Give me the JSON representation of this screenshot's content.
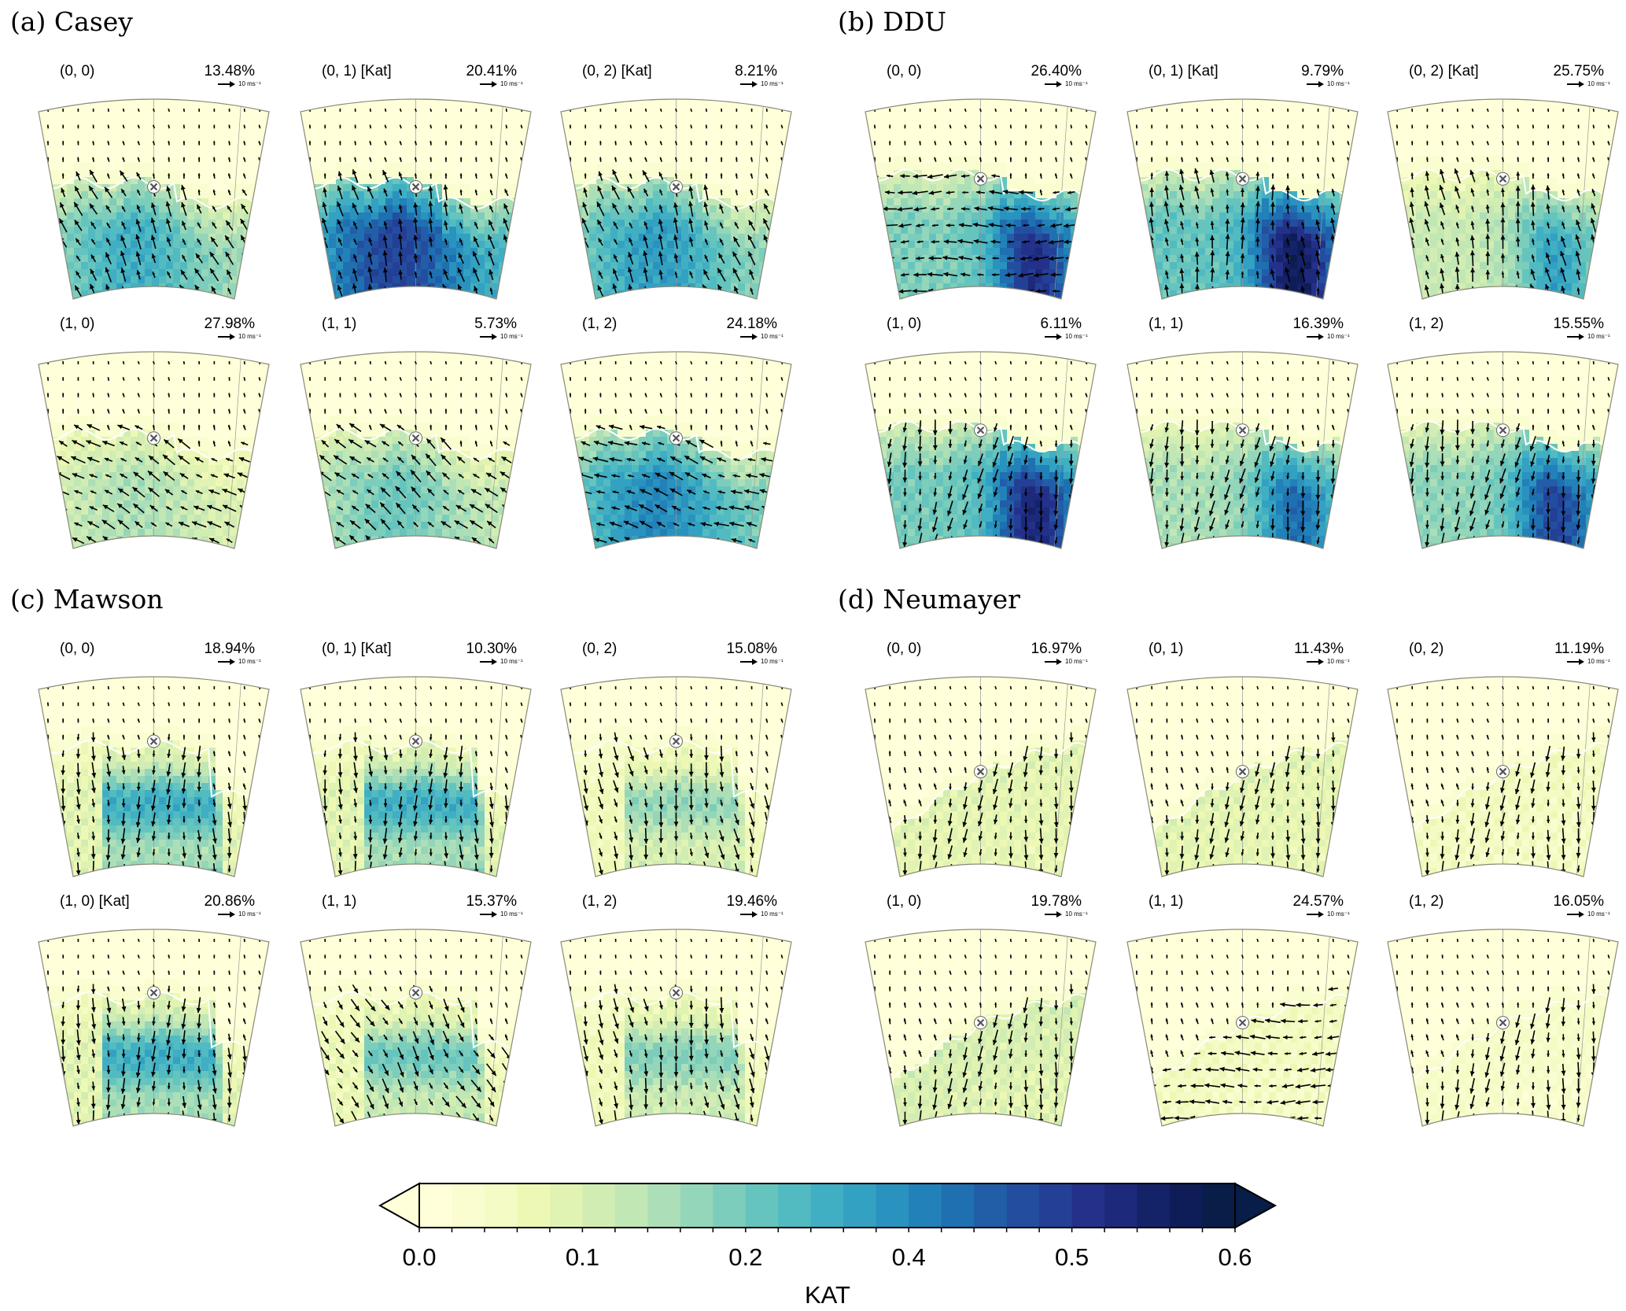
{
  "groups": [
    {
      "title": "(a) Casey",
      "panels": [
        {
          "label": "(0, 0)",
          "percent": "13.48%"
        },
        {
          "label": "(0, 1) [Kat]",
          "percent": "20.41%"
        },
        {
          "label": "(0, 2) [Kat]",
          "percent": "8.21%"
        },
        {
          "label": "(1, 0)",
          "percent": "27.98%"
        },
        {
          "label": "(1, 1)",
          "percent": "5.73%"
        },
        {
          "label": "(1, 2)",
          "percent": "24.18%"
        }
      ]
    },
    {
      "title": "(b) DDU",
      "panels": [
        {
          "label": "(0, 0)",
          "percent": "26.40%"
        },
        {
          "label": "(0, 1) [Kat]",
          "percent": "9.79%"
        },
        {
          "label": "(0, 2) [Kat]",
          "percent": "25.75%"
        },
        {
          "label": "(1, 0)",
          "percent": "6.11%"
        },
        {
          "label": "(1, 1)",
          "percent": "16.39%"
        },
        {
          "label": "(1, 2)",
          "percent": "15.55%"
        }
      ]
    },
    {
      "title": "(c) Mawson",
      "panels": [
        {
          "label": "(0, 0)",
          "percent": "18.94%"
        },
        {
          "label": "(0, 1) [Kat]",
          "percent": "10.30%"
        },
        {
          "label": "(0, 2)",
          "percent": "15.08%"
        },
        {
          "label": "(1, 0) [Kat]",
          "percent": "20.86%"
        },
        {
          "label": "(1, 1)",
          "percent": "15.37%"
        },
        {
          "label": "(1, 2)",
          "percent": "19.46%"
        }
      ]
    },
    {
      "title": "(d) Neumayer",
      "panels": [
        {
          "label": "(0, 0)",
          "percent": "16.97%"
        },
        {
          "label": "(0, 1)",
          "percent": "11.43%"
        },
        {
          "label": "(0, 2)",
          "percent": "11.19%"
        },
        {
          "label": "(1, 0)",
          "percent": "19.78%"
        },
        {
          "label": "(1, 1)",
          "percent": "24.57%"
        },
        {
          "label": "(1, 2)",
          "percent": "16.05%"
        }
      ]
    }
  ],
  "reference_vector": {
    "label": "10 ms⁻¹"
  },
  "station_marker_icon": "x-circle-marker",
  "coastline_color": "#ffffff",
  "colorbar": {
    "label": "KAT",
    "tick_labels": [
      "0.0",
      "0.1",
      "0.2",
      "0.4",
      "0.5",
      "0.6"
    ],
    "extend": "both",
    "colors": [
      "#ffffd9",
      "#fafdcf",
      "#f4fbc4",
      "#eef8b5",
      "#e0f3b2",
      "#d2edb3",
      "#c1e7b5",
      "#acdfb7",
      "#94d6b9",
      "#7ccdbb",
      "#65c4be",
      "#51bbc1",
      "#40afc3",
      "#33a1c2",
      "#2a92be",
      "#2181b8",
      "#1f70b0",
      "#225ea8",
      "#234ea0",
      "#243f96",
      "#24318a",
      "#1d297a",
      "#142268",
      "#0e1d58",
      "#081d48"
    ]
  }
}
